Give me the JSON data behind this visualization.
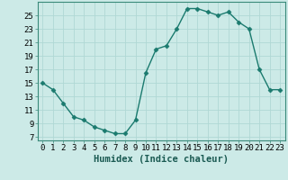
{
  "x": [
    0,
    1,
    2,
    3,
    4,
    5,
    6,
    7,
    8,
    9,
    10,
    11,
    12,
    13,
    14,
    15,
    16,
    17,
    18,
    19,
    20,
    21,
    22,
    23
  ],
  "y": [
    15,
    14,
    12,
    10,
    9.5,
    8.5,
    8,
    7.5,
    7.5,
    9.5,
    16.5,
    20,
    20.5,
    23,
    26,
    26,
    25.5,
    25,
    25.5,
    24,
    23,
    17,
    14,
    14
  ],
  "line_color": "#1a7a6e",
  "marker": "D",
  "marker_size": 2.5,
  "bg_color": "#cceae7",
  "grid_color": "#b0d8d4",
  "xlabel": "Humidex (Indice chaleur)",
  "xlabel_fontsize": 7.5,
  "ylabel_ticks": [
    7,
    9,
    11,
    13,
    15,
    17,
    19,
    21,
    23,
    25
  ],
  "xlim": [
    -0.5,
    23.5
  ],
  "ylim": [
    6.5,
    27
  ],
  "xtick_labels": [
    "0",
    "1",
    "2",
    "3",
    "4",
    "5",
    "6",
    "7",
    "8",
    "9",
    "10",
    "11",
    "12",
    "13",
    "14",
    "15",
    "16",
    "17",
    "18",
    "19",
    "20",
    "21",
    "22",
    "23"
  ],
  "tick_fontsize": 6.5,
  "spine_color": "#3a8a7a",
  "line_width": 1.0
}
